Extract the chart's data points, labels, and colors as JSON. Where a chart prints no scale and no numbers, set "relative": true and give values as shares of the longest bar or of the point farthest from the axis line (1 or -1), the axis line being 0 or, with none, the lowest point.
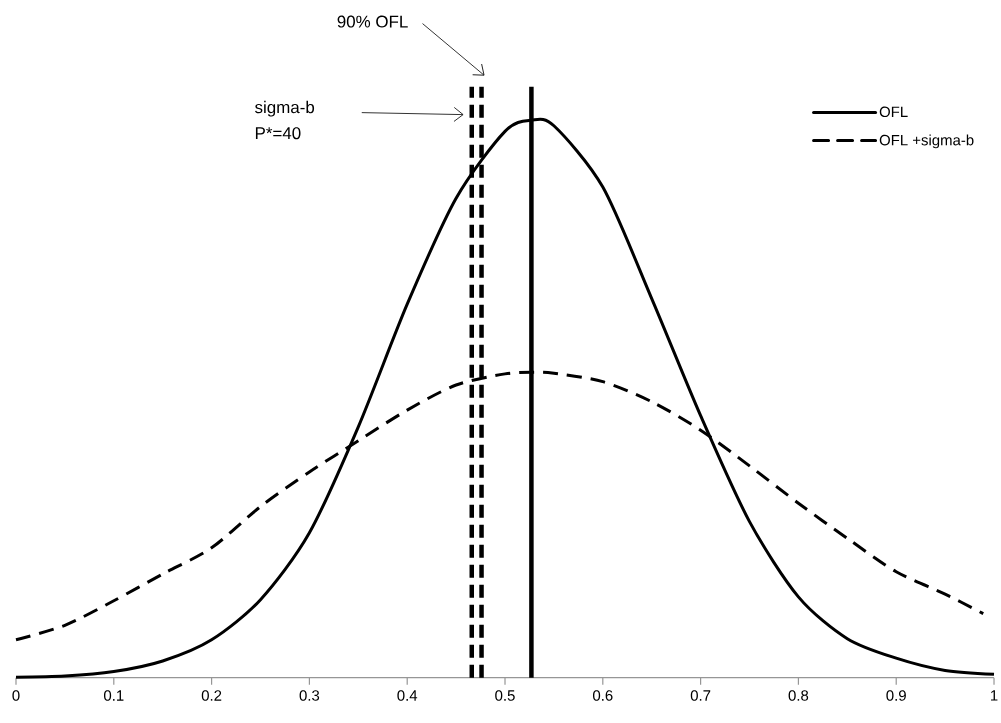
{
  "chart_data": {
    "type": "line",
    "relative": true,
    "xlim": [
      0,
      1
    ],
    "xticks": [
      0,
      0.1,
      0.2,
      0.3,
      0.4,
      0.5,
      0.6,
      0.7,
      0.8,
      0.9,
      1
    ],
    "tick_labels": "x",
    "legend": "top right",
    "marker": "none",
    "series": [
      {
        "name": "OFL",
        "color": "#000000",
        "line_style": "solid",
        "x": [
          0,
          0.05,
          0.1,
          0.15,
          0.2,
          0.25,
          0.3,
          0.35,
          0.4,
          0.45,
          0.5,
          0.527,
          0.55,
          0.6,
          0.65,
          0.7,
          0.75,
          0.8,
          0.85,
          0.9,
          0.95,
          1
        ],
        "values": [
          0.001,
          0.003,
          0.011,
          0.03,
          0.068,
          0.14,
          0.26,
          0.45,
          0.67,
          0.86,
          0.98,
          1,
          0.99,
          0.88,
          0.68,
          0.47,
          0.28,
          0.145,
          0.07,
          0.035,
          0.013,
          0.006
        ]
      },
      {
        "name": "OFL +sigma-b",
        "color": "#000000",
        "line_style": "dashed",
        "x": [
          0,
          0.05,
          0.1,
          0.15,
          0.2,
          0.25,
          0.3,
          0.35,
          0.4,
          0.45,
          0.5,
          0.53,
          0.55,
          0.6,
          0.65,
          0.7,
          0.75,
          0.8,
          0.85,
          0.9,
          0.95,
          0.989
        ],
        "values": [
          0.068,
          0.094,
          0.138,
          0.186,
          0.233,
          0.307,
          0.369,
          0.425,
          0.48,
          0.525,
          0.545,
          0.548,
          0.546,
          0.531,
          0.495,
          0.444,
          0.38,
          0.313,
          0.25,
          0.19,
          0.15,
          0.115
        ]
      }
    ],
    "ref_lines": [
      {
        "axis": "x",
        "value": 0.466,
        "line_style": "dashed",
        "color": "#000000"
      },
      {
        "axis": "x",
        "value": 0.476,
        "line_style": "dashed",
        "color": "#000000"
      },
      {
        "axis": "x",
        "value": 0.527,
        "line_style": "solid",
        "color": "#000000"
      }
    ],
    "annotations": [
      "90% OFL",
      "sigma-b P*=40"
    ]
  }
}
